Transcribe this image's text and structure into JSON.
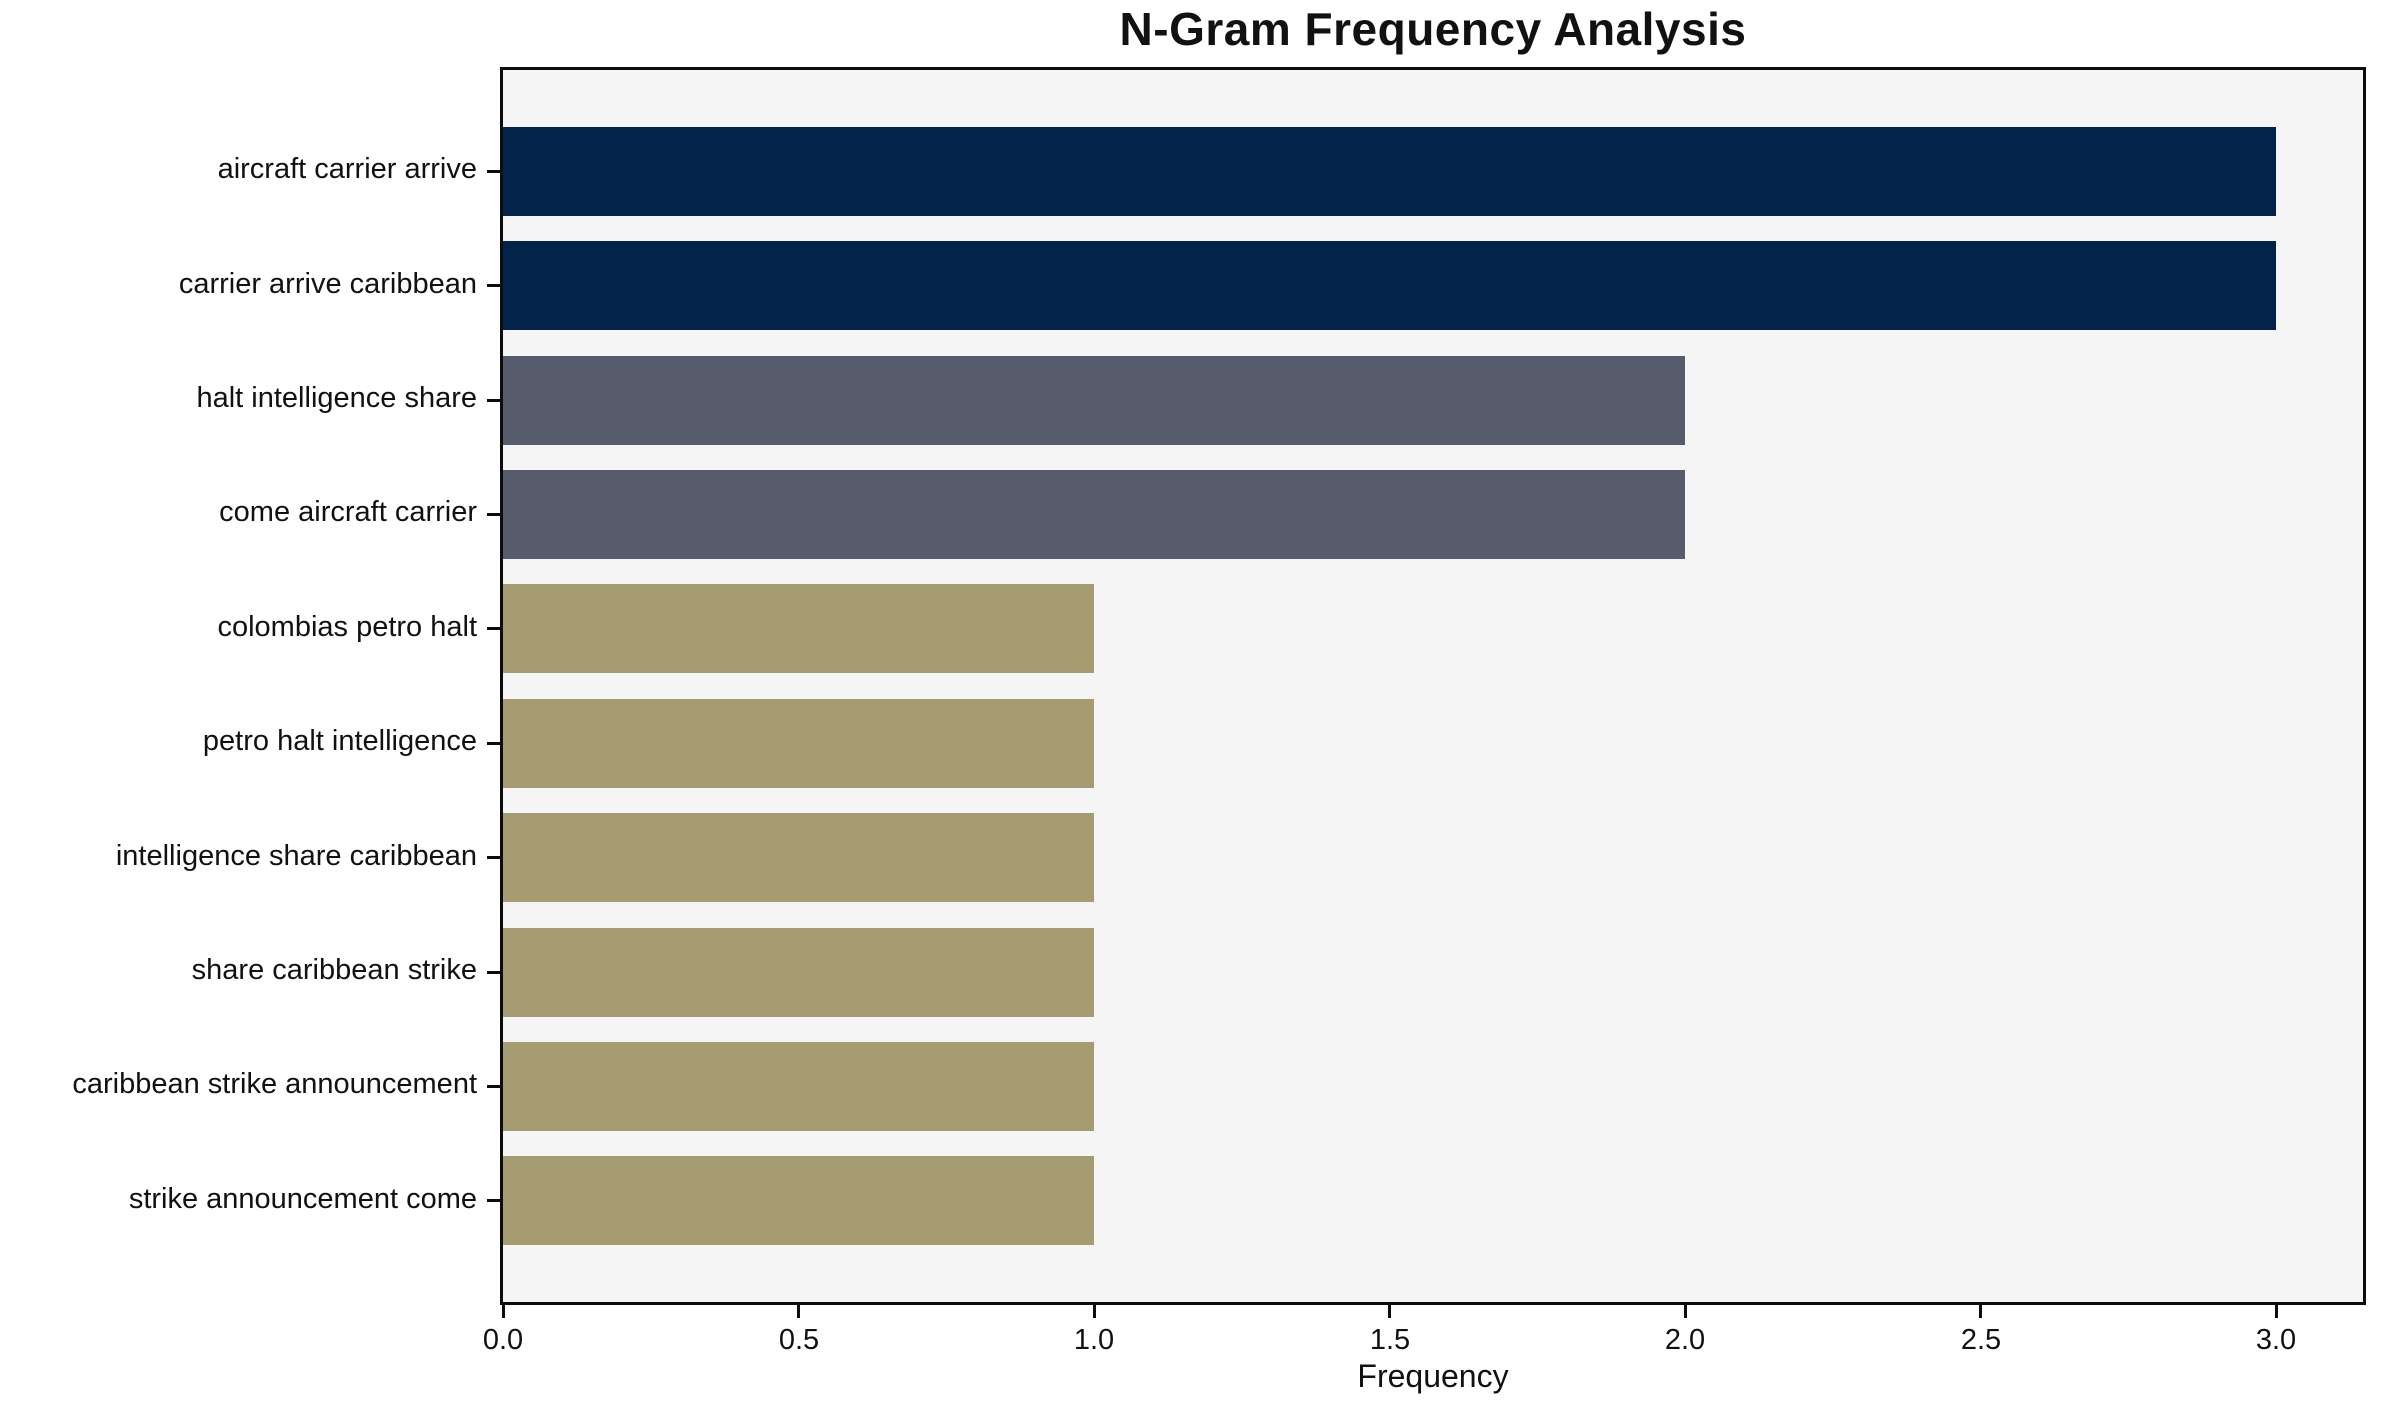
{
  "chart_data": {
    "type": "bar",
    "orientation": "horizontal",
    "title": "N-Gram Frequency Analysis",
    "xlabel": "Frequency",
    "ylabel": "",
    "categories": [
      "aircraft carrier arrive",
      "carrier arrive caribbean",
      "halt intelligence share",
      "come aircraft carrier",
      "colombias petro halt",
      "petro halt intelligence",
      "intelligence share caribbean",
      "share caribbean strike",
      "caribbean strike announcement",
      "strike announcement come"
    ],
    "values": [
      3,
      3,
      2,
      2,
      1,
      1,
      1,
      1,
      1,
      1
    ],
    "bar_colors": [
      "#02234A",
      "#02234A",
      "#565C6B",
      "#565C6B",
      "#A69C71",
      "#A69C71",
      "#A69C71",
      "#A69C71",
      "#A69C71",
      "#A69C71"
    ],
    "xticks": [
      "0.0",
      "0.5",
      "1.0",
      "1.5",
      "2.0",
      "2.5",
      "3.0"
    ],
    "xtick_values": [
      0,
      0.5,
      1.0,
      1.5,
      2.0,
      2.5,
      3.0
    ],
    "xlim": [
      0,
      3.147
    ],
    "grid": false,
    "legend": "none",
    "colors": {
      "plot_background": "#F5F5F6",
      "figure_background": "#FFFFFF",
      "axis": "#0C0C0C",
      "text": "#111111"
    }
  }
}
